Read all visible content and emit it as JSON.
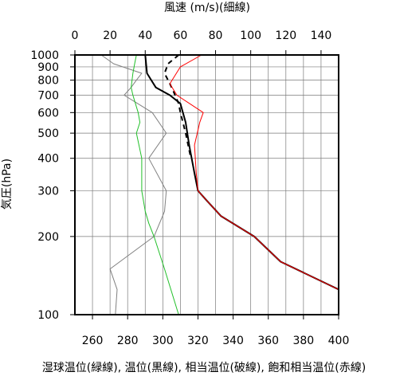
{
  "chart_data": {
    "type": "line",
    "top_axis": {
      "label": "風速 (m/s)(細線)",
      "range": [
        0,
        150
      ],
      "ticks": [
        0,
        20,
        40,
        60,
        80,
        100,
        120,
        140
      ]
    },
    "bottom_axis": {
      "label": "湿球温位(緑線), 温位(黒線), 相当温位(破線), 飽和相当温位(赤線)",
      "range": [
        250,
        400
      ],
      "ticks": [
        260,
        280,
        300,
        320,
        340,
        360,
        380,
        400
      ]
    },
    "y_axis": {
      "label": "気圧(hPa)",
      "scale": "log",
      "range": [
        1000,
        100
      ],
      "ticks": [
        100,
        200,
        300,
        400,
        500,
        600,
        700,
        800,
        900,
        1000
      ]
    },
    "grid": true,
    "series": [
      {
        "name": "風速",
        "axis": "top",
        "color": "#808080",
        "style": "solid",
        "points": [
          [
            15,
            1000
          ],
          [
            22,
            925
          ],
          [
            38,
            850
          ],
          [
            35,
            800
          ],
          [
            32,
            750
          ],
          [
            28,
            700
          ],
          [
            44,
            600
          ],
          [
            52,
            500
          ],
          [
            42,
            400
          ],
          [
            52,
            300
          ],
          [
            51,
            250
          ],
          [
            45,
            200
          ],
          [
            20,
            150
          ],
          [
            24,
            125
          ],
          [
            23,
            100
          ]
        ]
      },
      {
        "name": "湿球温位",
        "axis": "bottom",
        "color": "#22c02a",
        "style": "solid",
        "points": [
          [
            285,
            1000
          ],
          [
            284,
            925
          ],
          [
            283,
            850
          ],
          [
            282,
            750
          ],
          [
            283,
            700
          ],
          [
            286,
            600
          ],
          [
            287,
            550
          ],
          [
            285,
            500
          ],
          [
            288,
            400
          ],
          [
            288,
            300
          ],
          [
            290,
            250
          ],
          [
            292,
            225
          ],
          [
            295,
            200
          ],
          [
            301,
            150
          ],
          [
            309,
            100
          ]
        ]
      },
      {
        "name": "温位",
        "axis": "bottom",
        "color": "#000000",
        "style": "solid",
        "points": [
          [
            290,
            1000
          ],
          [
            291,
            850
          ],
          [
            296,
            750
          ],
          [
            304,
            700
          ],
          [
            310,
            650
          ],
          [
            313,
            550
          ],
          [
            315,
            450
          ],
          [
            318,
            350
          ],
          [
            320,
            300
          ],
          [
            325,
            275
          ],
          [
            333,
            240
          ],
          [
            352,
            200
          ],
          [
            367,
            160
          ],
          [
            400,
            125
          ]
        ]
      },
      {
        "name": "相当温位",
        "axis": "bottom",
        "color": "#000000",
        "style": "dashed",
        "points": [
          [
            309,
            1000
          ],
          [
            303,
            925
          ],
          [
            301,
            850
          ],
          [
            304,
            775
          ],
          [
            306,
            725
          ],
          [
            309,
            650
          ],
          [
            310,
            600
          ],
          [
            313,
            500
          ],
          [
            316,
            400
          ]
        ]
      },
      {
        "name": "飽和相当温位",
        "axis": "bottom",
        "color": "#ff0000",
        "style": "solid",
        "points": [
          [
            322,
            1000
          ],
          [
            310,
            900
          ],
          [
            304,
            775
          ],
          [
            308,
            700
          ],
          [
            323,
            600
          ],
          [
            321,
            550
          ],
          [
            318,
            450
          ],
          [
            319,
            350
          ],
          [
            320,
            300
          ],
          [
            325,
            275
          ],
          [
            333,
            240
          ],
          [
            352,
            200
          ],
          [
            367,
            160
          ],
          [
            400,
            125
          ]
        ]
      }
    ]
  }
}
